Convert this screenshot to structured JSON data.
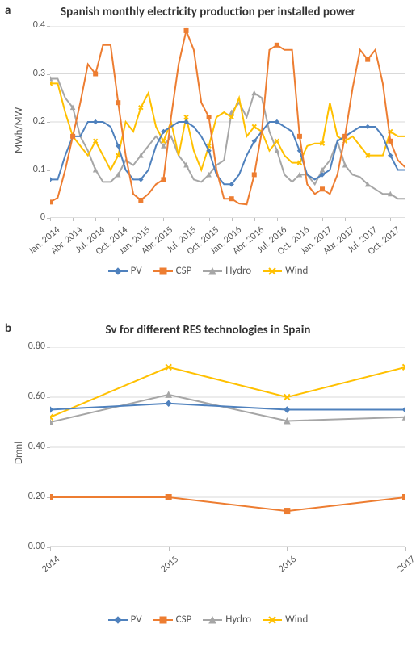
{
  "colors": {
    "pv": "#4f81bd",
    "csp": "#ed7d31",
    "hydro": "#a6a6a6",
    "wind": "#ffc000",
    "grid": "#d9d9d9",
    "axis": "#bfbfbf",
    "text": "#595959",
    "title": "#333333",
    "bg": "#ffffff"
  },
  "chartA": {
    "panel_label": "a",
    "title": "Spanish monthly electricity production per installed power",
    "ylabel": "MWh/MW",
    "ylim": [
      0,
      0.4
    ],
    "ytick_step": 0.1,
    "yticks": [
      "0",
      "0.1",
      "0.2",
      "0.3",
      "0.4"
    ],
    "x_labels": [
      "Jan. 2014",
      "Abr. 2014",
      "Jul. 2014",
      "Oct. 2014",
      "Jan. 2015",
      "Abr. 2015",
      "Jul. 2015",
      "Oct. 2015",
      "Jan. 2016",
      "Abr. 2016",
      "Jul. 2016",
      "Oct. 2016",
      "Jan. 2017",
      "Abr. 2017",
      "Jul. 2017",
      "Oct. 2017"
    ],
    "n_points": 48,
    "series": {
      "PV": [
        0.08,
        0.08,
        0.13,
        0.17,
        0.17,
        0.2,
        0.2,
        0.2,
        0.19,
        0.15,
        0.1,
        0.08,
        0.08,
        0.1,
        0.15,
        0.18,
        0.19,
        0.2,
        0.2,
        0.19,
        0.17,
        0.14,
        0.09,
        0.07,
        0.07,
        0.09,
        0.13,
        0.16,
        0.18,
        0.2,
        0.2,
        0.19,
        0.18,
        0.14,
        0.09,
        0.08,
        0.09,
        0.1,
        0.16,
        0.17,
        0.18,
        0.19,
        0.19,
        0.19,
        0.17,
        0.13,
        0.1,
        0.1
      ],
      "CSP": [
        0.033,
        0.042,
        0.1,
        0.17,
        0.24,
        0.32,
        0.3,
        0.36,
        0.36,
        0.24,
        0.13,
        0.05,
        0.037,
        0.05,
        0.07,
        0.08,
        0.21,
        0.32,
        0.39,
        0.35,
        0.24,
        0.21,
        0.1,
        0.04,
        0.04,
        0.03,
        0.028,
        0.09,
        0.18,
        0.35,
        0.36,
        0.35,
        0.35,
        0.17,
        0.07,
        0.05,
        0.06,
        0.05,
        0.09,
        0.17,
        0.27,
        0.35,
        0.33,
        0.35,
        0.28,
        0.16,
        0.12,
        0.105
      ],
      "Hydro": [
        0.29,
        0.29,
        0.25,
        0.23,
        0.17,
        0.14,
        0.1,
        0.075,
        0.075,
        0.09,
        0.12,
        0.11,
        0.13,
        0.15,
        0.17,
        0.15,
        0.17,
        0.13,
        0.11,
        0.08,
        0.075,
        0.09,
        0.11,
        0.12,
        0.22,
        0.24,
        0.21,
        0.26,
        0.25,
        0.18,
        0.14,
        0.09,
        0.075,
        0.09,
        0.09,
        0.07,
        0.1,
        0.12,
        0.16,
        0.11,
        0.09,
        0.085,
        0.07,
        0.06,
        0.05,
        0.05,
        0.04,
        0.04
      ],
      "Wind": [
        0.28,
        0.28,
        0.22,
        0.17,
        0.15,
        0.13,
        0.16,
        0.13,
        0.1,
        0.13,
        0.2,
        0.18,
        0.23,
        0.26,
        0.19,
        0.16,
        0.2,
        0.13,
        0.21,
        0.14,
        0.1,
        0.15,
        0.21,
        0.22,
        0.21,
        0.25,
        0.17,
        0.19,
        0.18,
        0.14,
        0.16,
        0.13,
        0.115,
        0.115,
        0.15,
        0.155,
        0.155,
        0.24,
        0.17,
        0.16,
        0.17,
        0.15,
        0.13,
        0.13,
        0.13,
        0.18,
        0.17,
        0.17
      ]
    },
    "marker_every": 3,
    "markers": {
      "PV": "diamond",
      "CSP": "square",
      "Hydro": "triangle",
      "Wind": "cross"
    },
    "line_width": 2,
    "marker_size": 5,
    "title_fontsize": 15,
    "label_fontsize": 13,
    "tick_fontsize": 12
  },
  "chartB": {
    "panel_label": "b",
    "title": "Sv for different RES technologies in Spain",
    "ylabel": "Dmnl",
    "ylim": [
      0.0,
      0.8
    ],
    "ytick_step": 0.2,
    "yticks": [
      "0.00",
      "0.20",
      "0.40",
      "0.60",
      "0.80"
    ],
    "x_labels": [
      "2014",
      "2015",
      "2016",
      "2017"
    ],
    "series": {
      "PV": [
        0.55,
        0.575,
        0.55,
        0.55
      ],
      "CSP": [
        0.2,
        0.2,
        0.145,
        0.2
      ],
      "Hydro": [
        0.5,
        0.61,
        0.505,
        0.52
      ],
      "Wind": [
        0.52,
        0.72,
        0.6,
        0.72
      ]
    },
    "markers": {
      "PV": "diamond",
      "CSP": "square",
      "Hydro": "triangle",
      "Wind": "cross"
    },
    "line_width": 2,
    "marker_size": 7,
    "title_fontsize": 15,
    "label_fontsize": 13,
    "tick_fontsize": 12
  },
  "legend": {
    "items": [
      "PV",
      "CSP",
      "Hydro",
      "Wind"
    ]
  }
}
